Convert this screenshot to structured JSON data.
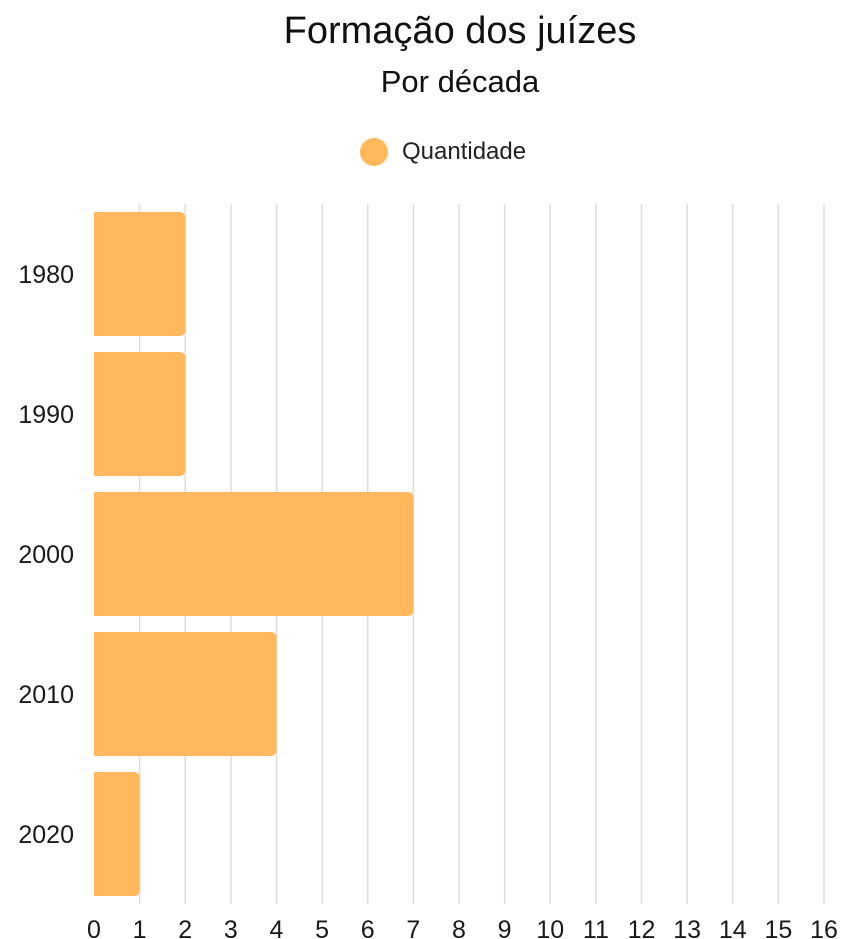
{
  "chart_data": {
    "type": "bar",
    "orientation": "horizontal",
    "title": "Formação dos juízes",
    "subtitle": "Por década",
    "categories": [
      "1980",
      "1990",
      "2000",
      "2010",
      "2020"
    ],
    "series": [
      {
        "name": "Quantidade",
        "values": [
          2,
          2,
          7,
          4,
          1
        ],
        "color": "#ffb85c"
      }
    ],
    "xlim": [
      0,
      16
    ],
    "xticks": [
      0,
      1,
      2,
      3,
      4,
      5,
      6,
      7,
      8,
      9,
      10,
      11,
      12,
      13,
      14,
      15,
      16
    ],
    "grid": true,
    "legend_position": "top-center"
  },
  "colors": {
    "bar": "#ffb85c",
    "grid": "#dddddd"
  }
}
